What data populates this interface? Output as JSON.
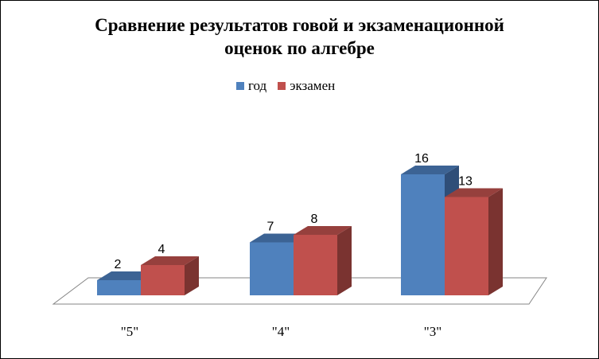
{
  "chart_data": {
    "type": "bar",
    "style": "3d-clustered-column",
    "title_lines": [
      "Сравнение результатов говой и экзаменационной",
      "оценок по алгебре"
    ],
    "categories": [
      "\"5\"",
      "\"4\"",
      "\"3\""
    ],
    "series": [
      {
        "name": "год",
        "values": [
          2,
          7,
          16
        ],
        "color": "#4F81BD",
        "top_color": "#3C6394",
        "side_color": "#2F4E78"
      },
      {
        "name": "экзамен",
        "values": [
          4,
          8,
          13
        ],
        "color": "#C0504D",
        "top_color": "#96403D",
        "side_color": "#7A3330"
      }
    ],
    "xlabel": "",
    "ylabel": "",
    "ylim": [
      0,
      16
    ],
    "grid": false,
    "data_labels": true,
    "legend_position": "top"
  }
}
